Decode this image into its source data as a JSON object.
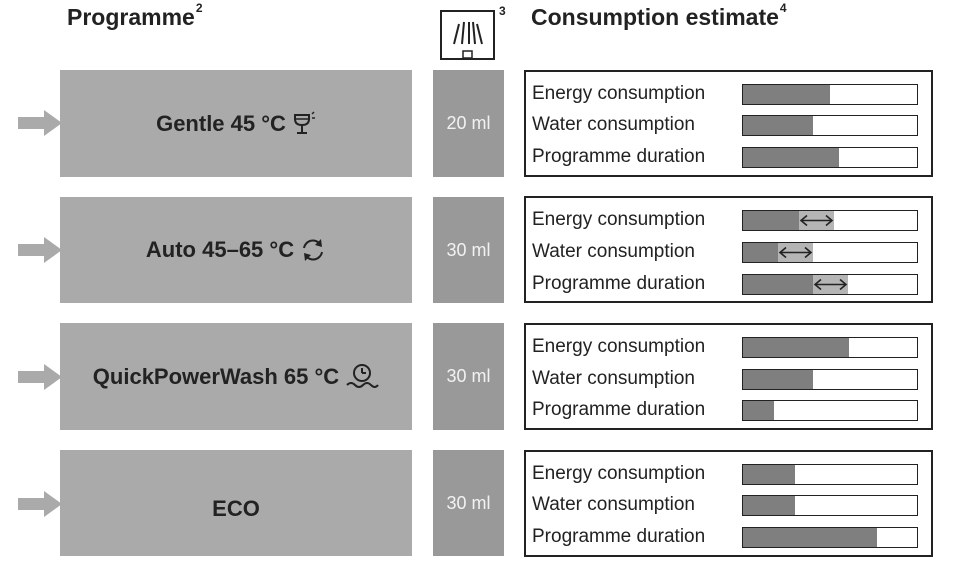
{
  "headers": {
    "programme": "Programme",
    "programme_sup": "2",
    "detergent_sup": "3",
    "consumption": "Consumption estimate",
    "consumption_sup": "4"
  },
  "colors": {
    "programme_box": "#aaaaaa",
    "dose_box": "#999999",
    "bar_fill": "#7f7f7f",
    "bar_range": "#b5b5b5",
    "arrow": "#aaaaaa"
  },
  "programmes": [
    {
      "name": "Gentle 45 °C",
      "icon": "wine-glass-icon",
      "dose": "20 ml",
      "rows": [
        {
          "label": "Energy consumption",
          "fill": 0.5
        },
        {
          "label": "Water consumption",
          "fill": 0.4
        },
        {
          "label": "Programme duration",
          "fill": 0.55
        }
      ]
    },
    {
      "name": "Auto 45–65 °C",
      "icon": "auto-cycle-icon",
      "dose": "30 ml",
      "rows": [
        {
          "label": "Energy consumption",
          "fill": 0.32,
          "range_to": 0.52
        },
        {
          "label": "Water consumption",
          "fill": 0.2,
          "range_to": 0.4
        },
        {
          "label": "Programme duration",
          "fill": 0.4,
          "range_to": 0.6
        }
      ]
    },
    {
      "name": "QuickPowerWash 65 °C",
      "icon": "quick-power-wash-icon",
      "dose": "30 ml",
      "rows": [
        {
          "label": "Energy consumption",
          "fill": 0.61
        },
        {
          "label": "Water consumption",
          "fill": 0.4
        },
        {
          "label": "Programme duration",
          "fill": 0.18
        }
      ]
    },
    {
      "name": "ECO",
      "icon": "",
      "dose": "30 ml",
      "rows": [
        {
          "label": "Energy consumption",
          "fill": 0.3
        },
        {
          "label": "Water consumption",
          "fill": 0.3
        },
        {
          "label": "Programme duration",
          "fill": 0.77
        }
      ]
    }
  ]
}
